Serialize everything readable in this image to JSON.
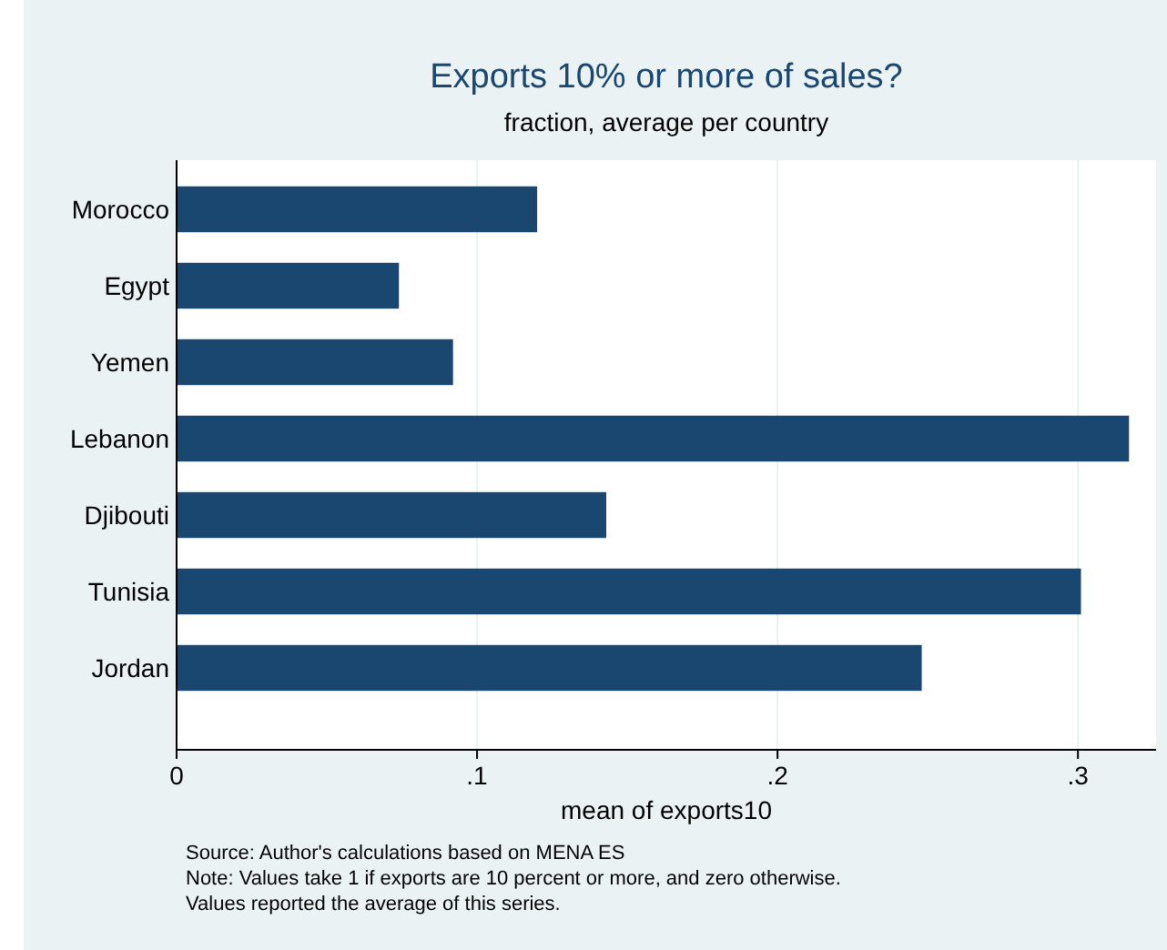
{
  "chart_data": {
    "type": "bar",
    "orientation": "horizontal",
    "title": "Exports 10% or more of sales?",
    "subtitle": "fraction, average per country",
    "xlabel": "mean of exports10",
    "categories": [
      "Morocco",
      "Egypt",
      "Yemen",
      "Lebanon",
      "Djibouti",
      "Tunisia",
      "Jordan"
    ],
    "values": [
      0.12,
      0.074,
      0.092,
      0.317,
      0.143,
      0.301,
      0.248
    ],
    "color": "#1a476f",
    "xlim": [
      0,
      0.326
    ],
    "xticks": [
      {
        "value": 0,
        "label": "0"
      },
      {
        "value": 0.1,
        "label": ".1"
      },
      {
        "value": 0.2,
        "label": ".2"
      },
      {
        "value": 0.3,
        "label": ".3"
      }
    ],
    "grid": "x",
    "annotations": [
      "Source: Author's calculations based on MENA ES",
      "Note: Values take 1 if exports are 10 percent or more, and zero otherwise.",
      "Values reported the average of this series."
    ]
  }
}
